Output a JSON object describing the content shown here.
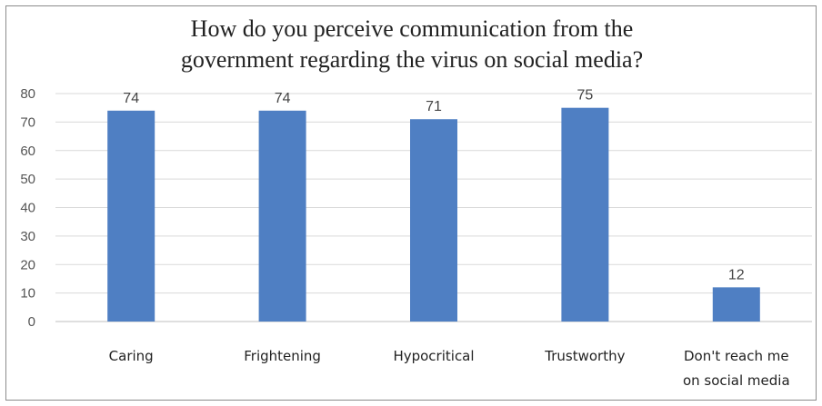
{
  "chart_data": {
    "type": "bar",
    "title": [
      "How do you perceive communication from the",
      "government regarding the virus on social media?"
    ],
    "categories": [
      [
        "Caring"
      ],
      [
        "Frightening"
      ],
      [
        "Hypocritical"
      ],
      [
        "Trustworthy"
      ],
      [
        "Don't reach me",
        "on social media"
      ]
    ],
    "values": [
      74,
      74,
      71,
      75,
      12
    ],
    "ylim": [
      0,
      80
    ],
    "yticks": [
      0,
      10,
      20,
      30,
      40,
      50,
      60,
      70,
      80
    ],
    "grid": true,
    "legend": "none",
    "bar_color": "#4f7fc3",
    "data_labels": true
  }
}
